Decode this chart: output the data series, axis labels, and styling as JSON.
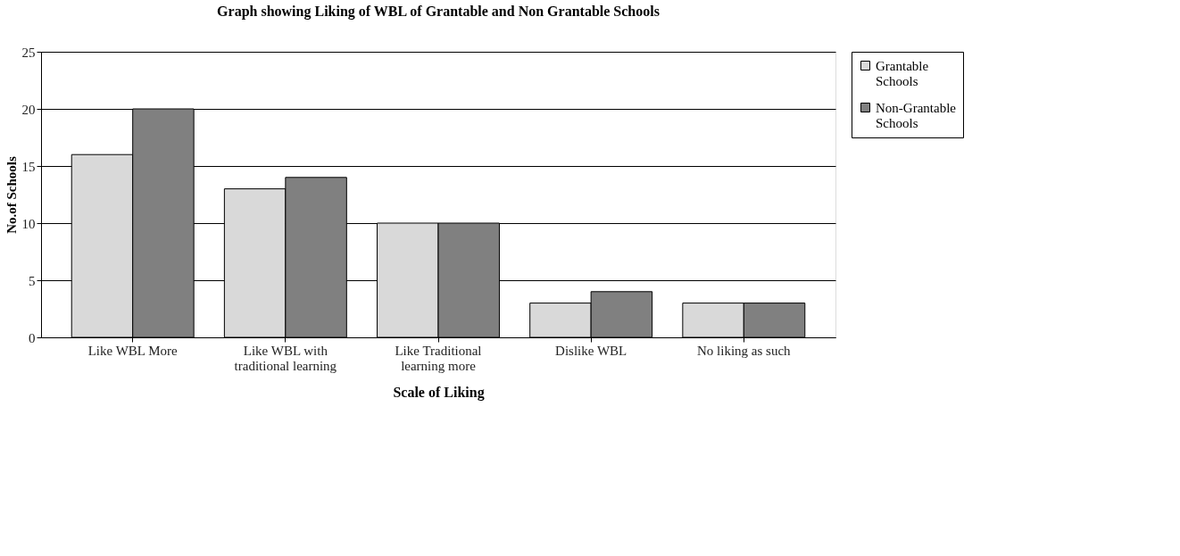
{
  "chart_data": {
    "type": "bar",
    "title": "Graph showing Liking of WBL of Grantable and Non Grantable Schools",
    "xlabel": "Scale of Liking",
    "ylabel": "No.of Schools",
    "categories": [
      "Like WBL More",
      "Like WBL with traditional learning",
      "Like Traditional learning more",
      "Dislike WBL",
      "No liking as such"
    ],
    "series": [
      {
        "name": "Grantable Schools",
        "color": "#d9d9d9",
        "values": [
          16,
          13,
          10,
          3,
          3
        ]
      },
      {
        "name": "Non-Grantable Schools",
        "color": "#808080",
        "values": [
          20,
          14,
          10,
          4,
          3
        ]
      }
    ],
    "ylim": [
      0,
      25
    ],
    "yticks": [
      0,
      5,
      10,
      15,
      20,
      25
    ],
    "grid": "y",
    "legend": "right"
  }
}
